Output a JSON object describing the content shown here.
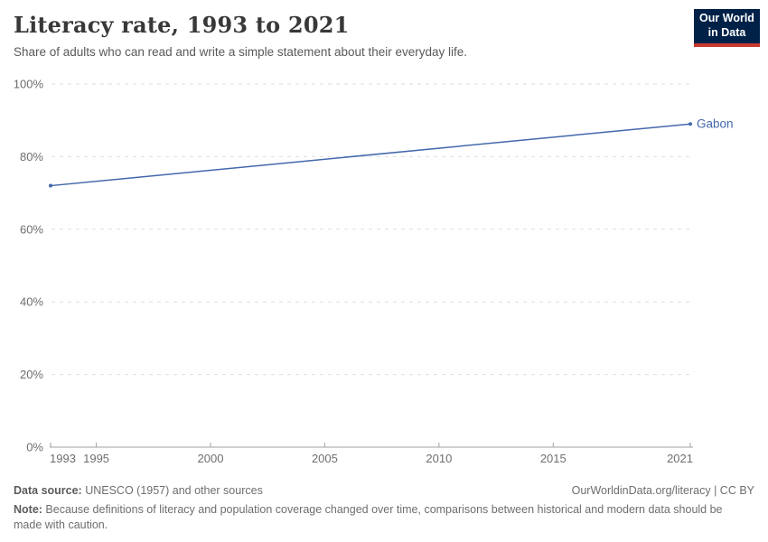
{
  "header": {
    "title": "Literacy rate, 1993 to 2021",
    "subtitle": "Share of adults who can read and write a simple statement about their everyday life.",
    "logo": {
      "line1": "Our World",
      "line2": "in Data",
      "bg_color": "#002147",
      "accent_color": "#c7382e"
    }
  },
  "chart_data": {
    "type": "line",
    "title": "Literacy rate, 1993 to 2021",
    "xlabel": "",
    "ylabel": "",
    "xlim": [
      1993,
      2021
    ],
    "ylim": [
      0,
      100
    ],
    "x_ticks": [
      1993,
      1995,
      2000,
      2005,
      2010,
      2015,
      2021
    ],
    "y_ticks": [
      {
        "value": 0,
        "label": "0%"
      },
      {
        "value": 20,
        "label": "20%"
      },
      {
        "value": 40,
        "label": "40%"
      },
      {
        "value": 60,
        "label": "60%"
      },
      {
        "value": 80,
        "label": "80%"
      },
      {
        "value": 100,
        "label": "100%"
      }
    ],
    "grid": "horizontal-dashed",
    "legend_position": "end-of-line-label",
    "colors": {
      "gridline": "#dedede",
      "axis": "#a1a1a1",
      "tick_label": "#6e6e6e"
    },
    "series": [
      {
        "name": "Gabon",
        "color": "#4268ab",
        "points": [
          {
            "x": 1993,
            "y": 72
          },
          {
            "x": 2021,
            "y": 89
          }
        ]
      }
    ]
  },
  "footer": {
    "source_label": "Data source:",
    "source_text": " UNESCO (1957) and other sources",
    "link": "OurWorldinData.org/literacy | CC BY",
    "note_label": "Note:",
    "note_text": " Because definitions of literacy and population coverage changed over time, comparisons between historical and modern data should be made with caution."
  }
}
